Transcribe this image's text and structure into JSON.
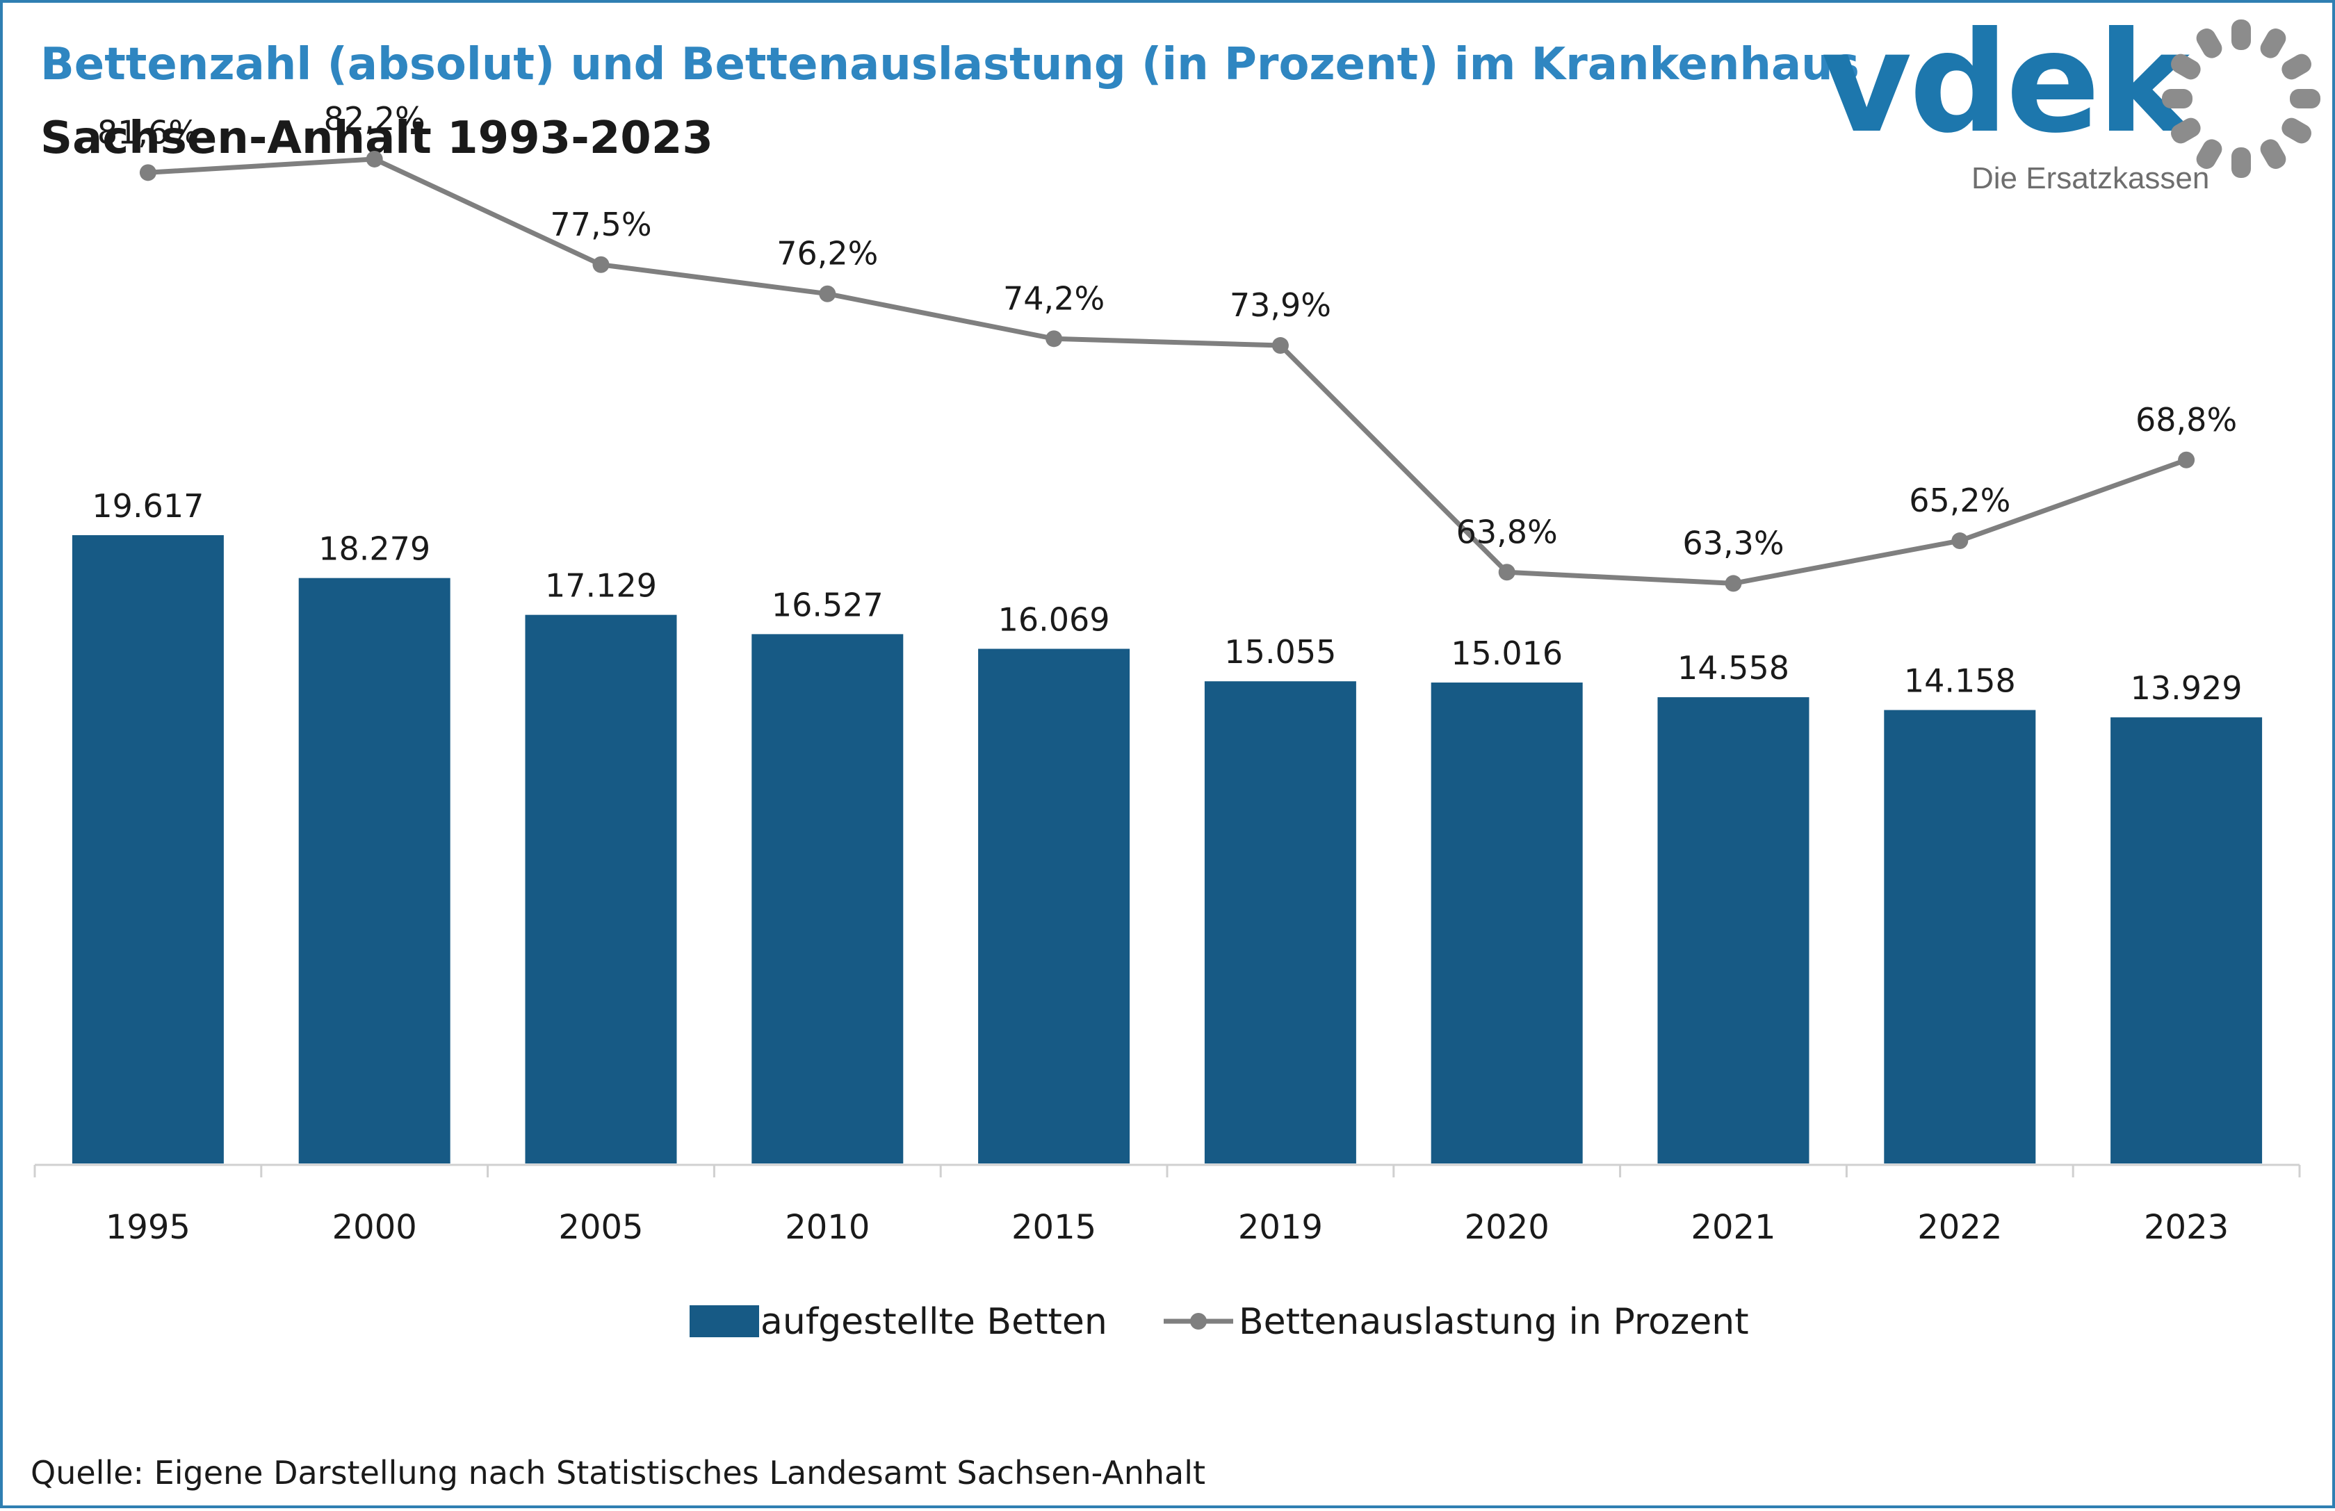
{
  "header": {
    "title": "Bettenzahl (absolut) und Bettenauslastung (in Prozent) im Krankenhaus",
    "subtitle": "Sachsen-Anhalt 1993-2023"
  },
  "logo": {
    "wordmark": "vdek",
    "tagline": "Die Ersatzkassen",
    "icon": "dotted-ring-icon"
  },
  "source": "Quelle: Eigene Darstellung nach Statistisches Landesamt Sachsen-Anhalt",
  "colors": {
    "title": "#2f86c1",
    "bar": "#175a85",
    "line": "#7f7f7f",
    "logo_blue": "#1d77ad",
    "logo_gray": "#8c8c8c",
    "frame": "#2f7fb2"
  },
  "chart_data": {
    "type": "bar",
    "categories": [
      "1995",
      "2000",
      "2005",
      "2010",
      "2015",
      "2019",
      "2020",
      "2021",
      "2022",
      "2023"
    ],
    "series": [
      {
        "name": "aufgestellte Betten",
        "type": "bar",
        "values": [
          19617,
          18279,
          17129,
          16527,
          16069,
          15055,
          15016,
          14558,
          14158,
          13929
        ],
        "labels": [
          "19.617",
          "18.279",
          "17.129",
          "16.527",
          "16.069",
          "15.055",
          "15.016",
          "14.558",
          "14.158",
          "13.929"
        ]
      },
      {
        "name": "Bettenauslastung in Prozent",
        "type": "line",
        "values": [
          81.6,
          82.2,
          77.5,
          76.2,
          74.2,
          73.9,
          63.8,
          63.3,
          65.2,
          68.8
        ],
        "labels": [
          "81,6%",
          "82,2%",
          "77,5%",
          "76,2%",
          "74,2%",
          "73,9%",
          "63,8%",
          "63,3%",
          "65,2%",
          "68,8%"
        ]
      }
    ],
    "legend": {
      "placement": "bottom"
    },
    "grid": false
  }
}
